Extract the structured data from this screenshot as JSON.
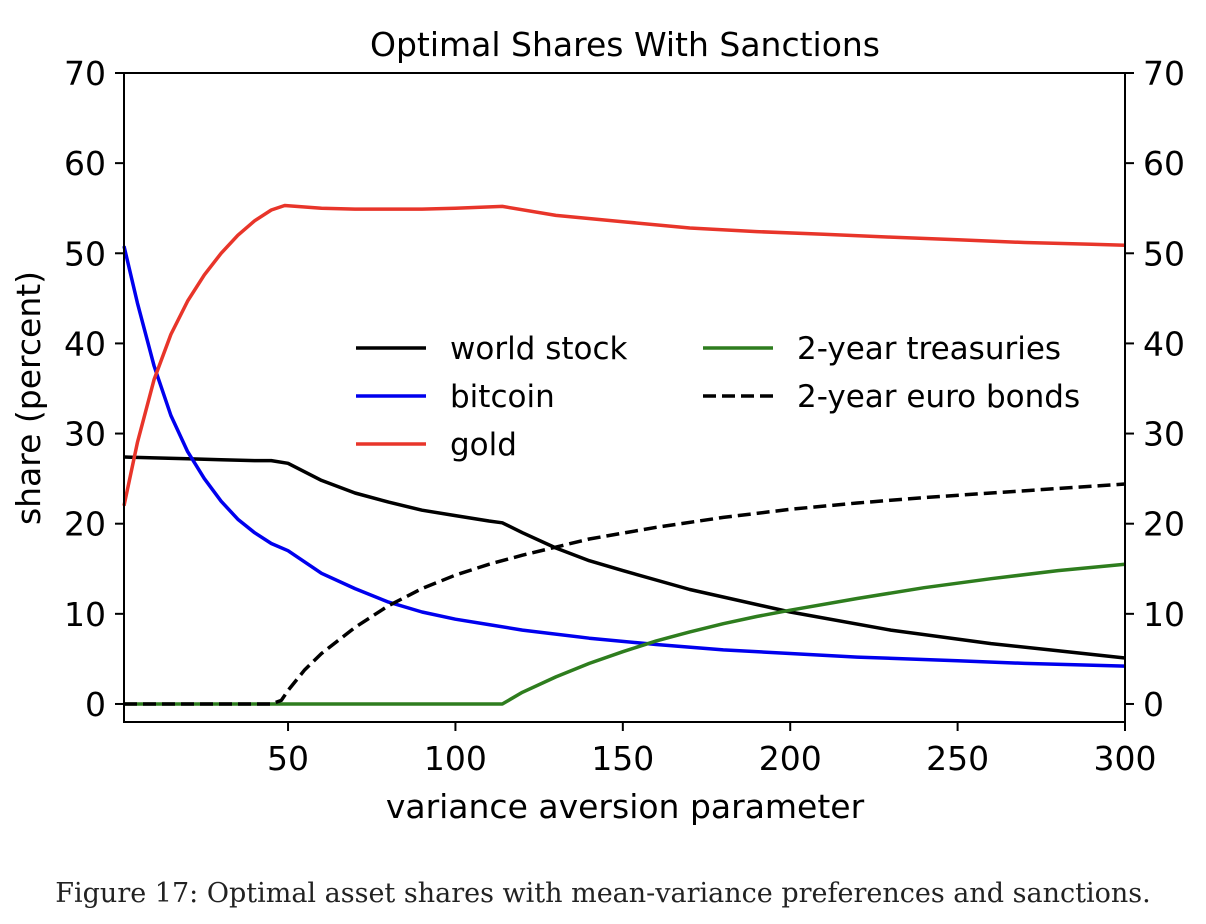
{
  "chart_data": {
    "type": "line",
    "title": "Optimal Shares With Sanctions",
    "xlabel": "variance aversion parameter",
    "ylabel": "share (percent)",
    "xlim": [
      1,
      300
    ],
    "ylim": [
      -2,
      70
    ],
    "xticks": [
      50,
      100,
      150,
      200,
      250,
      300
    ],
    "yticks": [
      0,
      10,
      20,
      30,
      40,
      50,
      60,
      70
    ],
    "right_axis_mirrors_left": true,
    "grid": false,
    "legend_placement": "center",
    "series": [
      {
        "name": "world stock",
        "color": "#000000",
        "dashed": false,
        "x": [
          1,
          10,
          20,
          30,
          40,
          45,
          50,
          60,
          70,
          80,
          90,
          100,
          110,
          114,
          120,
          130,
          140,
          150,
          170,
          200,
          230,
          260,
          280,
          300
        ],
        "y": [
          27.4,
          27.3,
          27.2,
          27.1,
          27.0,
          27.0,
          26.7,
          24.8,
          23.4,
          22.4,
          21.5,
          20.9,
          20.3,
          20.1,
          19.0,
          17.3,
          15.9,
          14.8,
          12.7,
          10.2,
          8.2,
          6.7,
          5.9,
          5.1
        ]
      },
      {
        "name": "bitcoin",
        "color": "#0000ee",
        "dashed": false,
        "x": [
          1,
          5,
          10,
          15,
          20,
          25,
          30,
          35,
          40,
          45,
          50,
          60,
          70,
          80,
          90,
          100,
          110,
          120,
          140,
          160,
          180,
          200,
          220,
          250,
          270,
          300
        ],
        "y": [
          50.8,
          44.5,
          37.5,
          32.0,
          28.0,
          25.0,
          22.5,
          20.5,
          19.0,
          17.8,
          17.0,
          14.5,
          12.8,
          11.3,
          10.2,
          9.4,
          8.8,
          8.2,
          7.3,
          6.6,
          6.0,
          5.6,
          5.2,
          4.8,
          4.5,
          4.2
        ]
      },
      {
        "name": "gold",
        "color": "#e8352a",
        "dashed": false,
        "x": [
          1,
          5,
          10,
          15,
          20,
          25,
          30,
          35,
          40,
          45,
          49,
          60,
          70,
          80,
          90,
          100,
          114,
          130,
          150,
          170,
          190,
          210,
          230,
          250,
          270,
          290,
          300
        ],
        "y": [
          22.0,
          29.0,
          36.0,
          41.0,
          44.7,
          47.6,
          50.0,
          52.0,
          53.6,
          54.8,
          55.3,
          55.0,
          54.9,
          54.9,
          54.9,
          55.0,
          55.2,
          54.2,
          53.5,
          52.8,
          52.4,
          52.1,
          51.8,
          51.5,
          51.2,
          51.0,
          50.9
        ]
      },
      {
        "name": "2-year treasuries",
        "color": "#2e7d1e",
        "dashed": false,
        "x": [
          1,
          50,
          100,
          114,
          120,
          130,
          140,
          150,
          160,
          170,
          180,
          190,
          200,
          220,
          240,
          260,
          280,
          300
        ],
        "y": [
          0,
          0,
          0,
          0,
          1.3,
          3.0,
          4.5,
          5.8,
          7.0,
          8.0,
          8.9,
          9.7,
          10.4,
          11.7,
          12.9,
          13.9,
          14.8,
          15.5
        ]
      },
      {
        "name": "2-year euro bonds",
        "color": "#000000",
        "dashed": true,
        "x": [
          1,
          20,
          40,
          45,
          48,
          50,
          55,
          60,
          70,
          80,
          90,
          100,
          110,
          120,
          140,
          160,
          180,
          200,
          220,
          240,
          260,
          280,
          300
        ],
        "y": [
          0,
          0,
          0,
          0,
          0.4,
          1.5,
          3.8,
          5.6,
          8.5,
          10.9,
          12.8,
          14.3,
          15.5,
          16.5,
          18.3,
          19.6,
          20.7,
          21.6,
          22.3,
          22.9,
          23.4,
          23.9,
          24.4
        ]
      }
    ]
  },
  "caption": "Figure 17: Optimal asset shares with mean-variance preferences and sanctions."
}
